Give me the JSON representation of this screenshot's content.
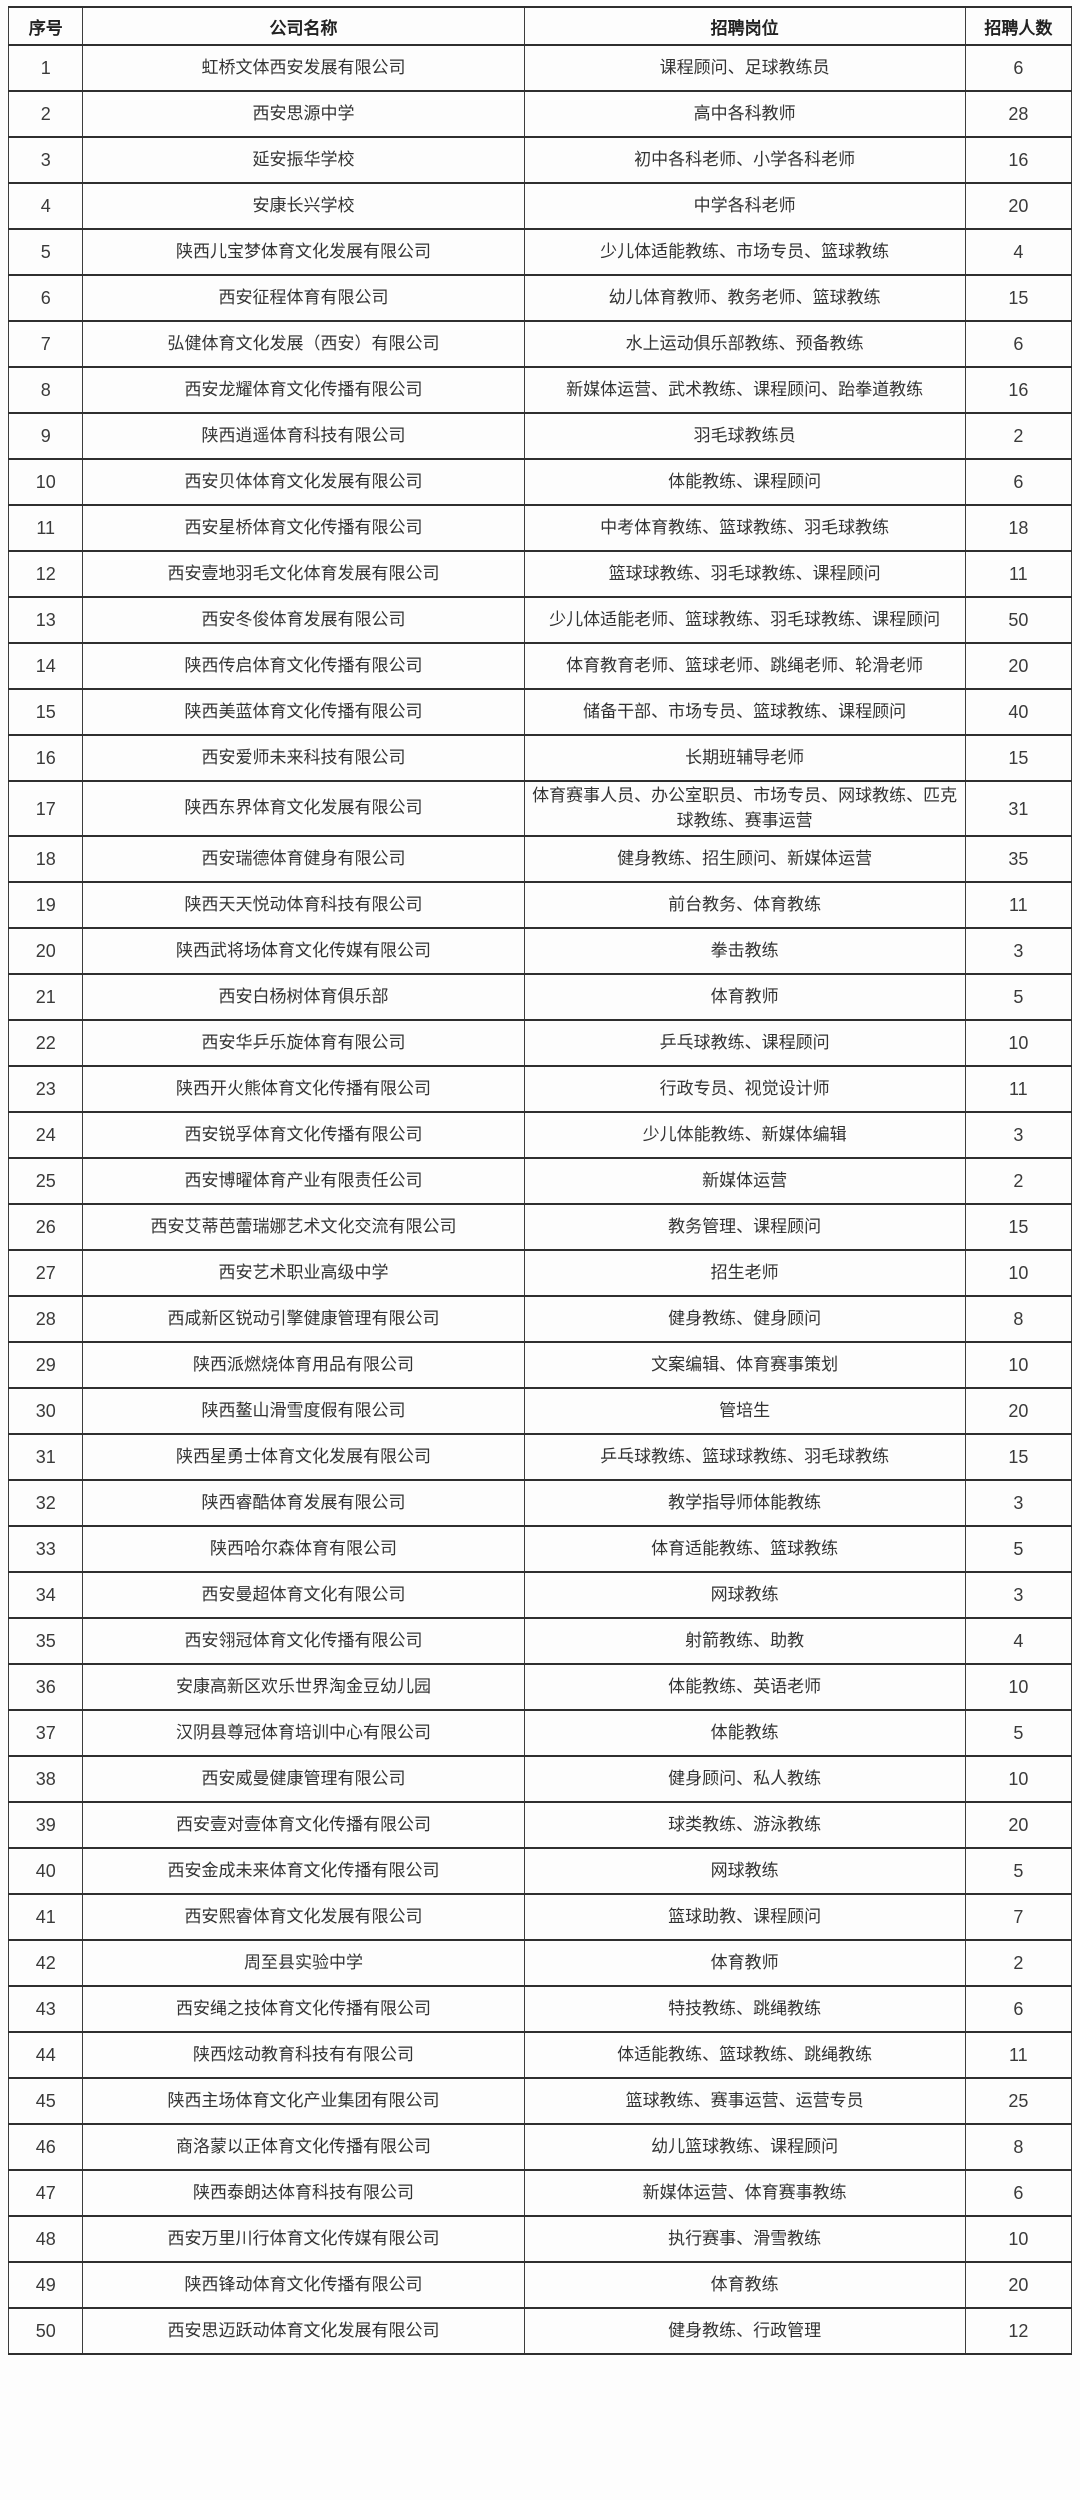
{
  "table": {
    "columns": [
      "序号",
      "公司名称",
      "招聘岗位",
      "招聘人数"
    ],
    "rows": [
      {
        "no": "1",
        "company": "虹桥文体西安发展有限公司",
        "positions": "课程顾问、足球教练员",
        "count": "6"
      },
      {
        "no": "2",
        "company": "西安思源中学",
        "positions": "高中各科教师",
        "count": "28"
      },
      {
        "no": "3",
        "company": "延安振华学校",
        "positions": "初中各科老师、小学各科老师",
        "count": "16"
      },
      {
        "no": "4",
        "company": "安康长兴学校",
        "positions": "中学各科老师",
        "count": "20"
      },
      {
        "no": "5",
        "company": "陕西儿宝梦体育文化发展有限公司",
        "positions": "少儿体适能教练、市场专员、篮球教练",
        "count": "4"
      },
      {
        "no": "6",
        "company": "西安征程体育有限公司",
        "positions": "幼儿体育教师、教务老师、篮球教练",
        "count": "15"
      },
      {
        "no": "7",
        "company": "弘健体育文化发展（西安）有限公司",
        "positions": "水上运动俱乐部教练、预备教练",
        "count": "6"
      },
      {
        "no": "8",
        "company": "西安龙耀体育文化传播有限公司",
        "positions": "新媒体运营、武术教练、课程顾问、跆拳道教练",
        "count": "16"
      },
      {
        "no": "9",
        "company": "陕西逍遥体育科技有限公司",
        "positions": "羽毛球教练员",
        "count": "2"
      },
      {
        "no": "10",
        "company": "西安贝体体育文化发展有限公司",
        "positions": "体能教练、课程顾问",
        "count": "6"
      },
      {
        "no": "11",
        "company": "西安星桥体育文化传播有限公司",
        "positions": "中考体育教练、篮球教练、羽毛球教练",
        "count": "18"
      },
      {
        "no": "12",
        "company": "西安壹地羽毛文化体育发展有限公司",
        "positions": "篮球球教练、羽毛球教练、课程顾问",
        "count": "11"
      },
      {
        "no": "13",
        "company": "西安冬俊体育发展有限公司",
        "positions": "少儿体适能老师、篮球教练、羽毛球教练、课程顾问",
        "count": "50"
      },
      {
        "no": "14",
        "company": "陕西传启体育文化传播有限公司",
        "positions": "体育教育老师、篮球老师、跳绳老师、轮滑老师",
        "count": "20"
      },
      {
        "no": "15",
        "company": "陕西美蓝体育文化传播有限公司",
        "positions": "储备干部、市场专员、篮球教练、课程顾问",
        "count": "40"
      },
      {
        "no": "16",
        "company": "西安爱师未来科技有限公司",
        "positions": "长期班辅导老师",
        "count": "15"
      },
      {
        "no": "17",
        "company": "陕西东界体育文化发展有限公司",
        "positions": "体育赛事人员、办公室职员、市场专员、网球教练、匹克球教练、赛事运营",
        "count": "31"
      },
      {
        "no": "18",
        "company": "西安瑞德体育健身有限公司",
        "positions": "健身教练、招生顾问、新媒体运营",
        "count": "35"
      },
      {
        "no": "19",
        "company": "陕西天天悦动体育科技有限公司",
        "positions": "前台教务、体育教练",
        "count": "11"
      },
      {
        "no": "20",
        "company": "陕西武将场体育文化传媒有限公司",
        "positions": "拳击教练",
        "count": "3"
      },
      {
        "no": "21",
        "company": "西安白杨树体育俱乐部",
        "positions": "体育教师",
        "count": "5"
      },
      {
        "no": "22",
        "company": "西安华乒乐旋体育有限公司",
        "positions": "乒乓球教练、课程顾问",
        "count": "10"
      },
      {
        "no": "23",
        "company": "陕西开火熊体育文化传播有限公司",
        "positions": "行政专员、视觉设计师",
        "count": "11"
      },
      {
        "no": "24",
        "company": "西安锐孚体育文化传播有限公司",
        "positions": "少儿体能教练、新媒体编辑",
        "count": "3"
      },
      {
        "no": "25",
        "company": "西安博曜体育产业有限责任公司",
        "positions": "新媒体运营",
        "count": "2"
      },
      {
        "no": "26",
        "company": "西安艾蒂芭蕾瑞娜艺术文化交流有限公司",
        "positions": "教务管理、课程顾问",
        "count": "15"
      },
      {
        "no": "27",
        "company": "西安艺术职业高级中学",
        "positions": "招生老师",
        "count": "10"
      },
      {
        "no": "28",
        "company": "西咸新区锐动引擎健康管理有限公司",
        "positions": "健身教练、健身顾问",
        "count": "8"
      },
      {
        "no": "29",
        "company": "陕西派燃烧体育用品有限公司",
        "positions": "文案编辑、体育赛事策划",
        "count": "10"
      },
      {
        "no": "30",
        "company": "陕西鳌山滑雪度假有限公司",
        "positions": "管培生",
        "count": "20"
      },
      {
        "no": "31",
        "company": "陕西星勇士体育文化发展有限公司",
        "positions": "乒乓球教练、篮球球教练、羽毛球教练",
        "count": "15"
      },
      {
        "no": "32",
        "company": "陕西睿酷体育发展有限公司",
        "positions": "教学指导师体能教练",
        "count": "3"
      },
      {
        "no": "33",
        "company": "陕西哈尔森体育有限公司",
        "positions": "体育适能教练、篮球教练",
        "count": "5"
      },
      {
        "no": "34",
        "company": "西安曼超体育文化有限公司",
        "positions": "网球教练",
        "count": "3"
      },
      {
        "no": "35",
        "company": "西安翎冠体育文化传播有限公司",
        "positions": "射箭教练、助教",
        "count": "4"
      },
      {
        "no": "36",
        "company": "安康高新区欢乐世界淘金豆幼儿园",
        "positions": "体能教练、英语老师",
        "count": "10"
      },
      {
        "no": "37",
        "company": "汉阴县尊冠体育培训中心有限公司",
        "positions": "体能教练",
        "count": "5"
      },
      {
        "no": "38",
        "company": "西安威曼健康管理有限公司",
        "positions": "健身顾问、私人教练",
        "count": "10"
      },
      {
        "no": "39",
        "company": "西安壹对壹体育文化传播有限公司",
        "positions": "球类教练、游泳教练",
        "count": "20"
      },
      {
        "no": "40",
        "company": "西安金成未来体育文化传播有限公司",
        "positions": "网球教练",
        "count": "5"
      },
      {
        "no": "41",
        "company": "西安熙睿体育文化发展有限公司",
        "positions": "篮球助教、课程顾问",
        "count": "7"
      },
      {
        "no": "42",
        "company": "周至县实验中学",
        "positions": "体育教师",
        "count": "2"
      },
      {
        "no": "43",
        "company": "西安绳之技体育文化传播有限公司",
        "positions": "特技教练、跳绳教练",
        "count": "6"
      },
      {
        "no": "44",
        "company": "陕西炫动教育科技有有限公司",
        "positions": "体适能教练、篮球教练、跳绳教练",
        "count": "11"
      },
      {
        "no": "45",
        "company": "陕西主场体育文化产业集团有限公司",
        "positions": "篮球教练、赛事运营、运营专员",
        "count": "25"
      },
      {
        "no": "46",
        "company": "商洛蒙以正体育文化传播有限公司",
        "positions": "幼儿篮球教练、课程顾问",
        "count": "8"
      },
      {
        "no": "47",
        "company": "陕西泰朗达体育科技有限公司",
        "positions": "新媒体运营、体育赛事教练",
        "count": "6"
      },
      {
        "no": "48",
        "company": "西安万里川行体育文化传媒有限公司",
        "positions": "执行赛事、滑雪教练",
        "count": "10"
      },
      {
        "no": "49",
        "company": "陕西锋动体育文化传播有限公司",
        "positions": "体育教练",
        "count": "20"
      },
      {
        "no": "50",
        "company": "西安思迈跃动体育文化发展有限公司",
        "positions": "健身教练、行政管理",
        "count": "12"
      }
    ]
  }
}
